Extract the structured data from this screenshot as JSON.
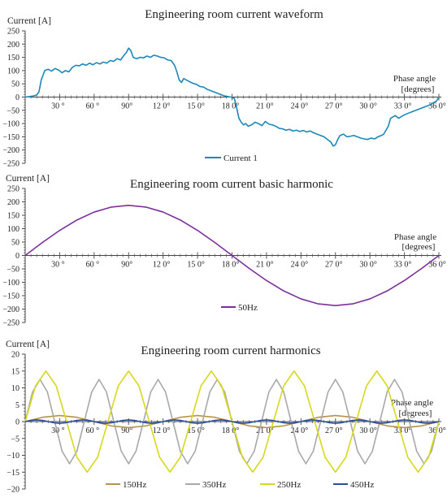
{
  "panels": [
    {
      "title": "Engineering room current waveform",
      "ylabel": "Current [A]",
      "xlabel_line1": "Phase angle",
      "xlabel_line2": "[degrees]",
      "xtick_labels": [
        "30 °",
        "60 °",
        "90°",
        "12 0°",
        "15 0°",
        "18 0°",
        "21 0°",
        "24 0°",
        "27 0°",
        "30 0°",
        "33 0°",
        "36 0°"
      ],
      "ytick_labels": [
        "250",
        "200",
        "150",
        "100",
        "50",
        "0",
        "−50",
        "−100",
        "−150",
        "−200",
        "−250"
      ],
      "legend": [
        "Current 1"
      ]
    },
    {
      "title": "Engineering room current basic harmonic",
      "ylabel": "Current [A]",
      "xlabel_line1": "Phase angle",
      "xlabel_line2": "[degrees]",
      "xtick_labels": [
        "30 °",
        "60 °",
        "90°",
        "12 0°",
        "15 0°",
        "18 0°",
        "21 0°",
        "24 0°",
        "27 0°",
        "30 0°",
        "33 0°",
        "36 0°"
      ],
      "ytick_labels": [
        "250",
        "200",
        "150",
        "100",
        "50",
        "0",
        "−50",
        "−100",
        "−150",
        "−200",
        "−250"
      ],
      "legend": [
        "50Hz"
      ]
    },
    {
      "title": "Engineering room current harmonics",
      "ylabel": "Current [A]",
      "xlabel_line1": "Phase angle",
      "xlabel_line2": "[degrees]",
      "xtick_labels": [
        "30 °",
        "60 °",
        "90°",
        "12 0°",
        "15 0°",
        "18 0°",
        "21 0°",
        "24 0°",
        "27 0°",
        "30 0°",
        "33 0°",
        "36 0°"
      ],
      "ytick_labels": [
        "20",
        "15",
        "10",
        "5",
        "0",
        "−5",
        "−10",
        "−15",
        "−20"
      ],
      "legend": [
        "150Hz",
        "350Hz",
        "250Hz",
        "450Hz"
      ]
    }
  ],
  "chart_data": [
    {
      "type": "line",
      "title": "Engineering room current waveform",
      "xlabel": "Phase angle [degrees]",
      "ylabel": "Current [A]",
      "xlim": [
        0,
        360
      ],
      "ylim": [
        -250,
        250
      ],
      "grid": false,
      "legend_position": "bottom",
      "series": [
        {
          "name": "Current 1",
          "color": "#1a88b8",
          "x": [
            0,
            5,
            10,
            12,
            14,
            17,
            20,
            23,
            26,
            29,
            32,
            35,
            38,
            41,
            44,
            47,
            50,
            53,
            56,
            59,
            62,
            65,
            68,
            71,
            74,
            77,
            80,
            83,
            86,
            88,
            90,
            92,
            94,
            97,
            100,
            103,
            106,
            109,
            112,
            115,
            118,
            121,
            124,
            127,
            130,
            132,
            134,
            136,
            138,
            140,
            143,
            146,
            149,
            152,
            155,
            158,
            161,
            164,
            167,
            170,
            173,
            176,
            179,
            182,
            184,
            186,
            188,
            190,
            192,
            194,
            197,
            200,
            203,
            206,
            209,
            212,
            215,
            218,
            221,
            224,
            227,
            230,
            233,
            236,
            239,
            242,
            245,
            248,
            251,
            254,
            257,
            260,
            263,
            266,
            268,
            270,
            272,
            274,
            277,
            280,
            283,
            286,
            289,
            292,
            295,
            298,
            301,
            304,
            307,
            310,
            312,
            314,
            316,
            318,
            320,
            322,
            325,
            328,
            331,
            334,
            337,
            340,
            343,
            346,
            349,
            352,
            355,
            358,
            360
          ],
          "y": [
            0,
            2,
            8,
            20,
            65,
            100,
            105,
            98,
            108,
            102,
            92,
            100,
            95,
            112,
            120,
            118,
            125,
            120,
            128,
            122,
            130,
            125,
            132,
            128,
            138,
            135,
            145,
            140,
            158,
            168,
            185,
            175,
            150,
            145,
            150,
            148,
            155,
            150,
            158,
            155,
            150,
            148,
            140,
            138,
            120,
            95,
            65,
            55,
            70,
            65,
            58,
            52,
            48,
            40,
            38,
            30,
            25,
            20,
            15,
            10,
            5,
            2,
            0,
            -5,
            -40,
            -80,
            -95,
            -105,
            -100,
            -110,
            -105,
            -95,
            -100,
            -108,
            -92,
            -102,
            -105,
            -110,
            -118,
            -120,
            -125,
            -122,
            -128,
            -125,
            -130,
            -126,
            -132,
            -128,
            -135,
            -140,
            -145,
            -150,
            -160,
            -170,
            -185,
            -180,
            -160,
            -145,
            -140,
            -150,
            -148,
            -145,
            -150,
            -155,
            -158,
            -160,
            -155,
            -158,
            -150,
            -145,
            -140,
            -125,
            -110,
            -80,
            -75,
            -70,
            -80,
            -72,
            -65,
            -60,
            -55,
            -50,
            -45,
            -40,
            -35,
            -30,
            -22,
            -15,
            0
          ]
        }
      ]
    },
    {
      "type": "line",
      "title": "Engineering room current basic harmonic",
      "xlabel": "Phase angle [degrees]",
      "ylabel": "Current [A]",
      "xlim": [
        0,
        360
      ],
      "ylim": [
        -250,
        250
      ],
      "grid": false,
      "legend_position": "bottom",
      "series": [
        {
          "name": "50Hz",
          "color": "#7b2f9c",
          "x": [
            0,
            15,
            30,
            45,
            60,
            75,
            90,
            105,
            120,
            135,
            150,
            165,
            180,
            195,
            210,
            225,
            240,
            255,
            270,
            285,
            300,
            315,
            330,
            345,
            360
          ],
          "y": [
            0,
            48.4,
            93.5,
            132.2,
            161.9,
            180.6,
            187,
            180.6,
            161.9,
            132.2,
            93.5,
            48.4,
            0,
            -48.4,
            -93.5,
            -132.2,
            -161.9,
            -180.6,
            -187,
            -180.6,
            -161.9,
            -132.2,
            -93.5,
            -48.4,
            0
          ]
        }
      ]
    },
    {
      "type": "line",
      "title": "Engineering room current harmonics",
      "xlabel": "Phase angle [degrees]",
      "ylabel": "Current [A]",
      "xlim": [
        0,
        360
      ],
      "ylim": [
        -20,
        20
      ],
      "grid": false,
      "legend_position": "bottom",
      "series": [
        {
          "name": "150Hz",
          "color": "#b5944a",
          "x": [
            0,
            15,
            30,
            45,
            60,
            75,
            90,
            105,
            120,
            135,
            150,
            165,
            180,
            195,
            210,
            225,
            240,
            255,
            270,
            285,
            300,
            315,
            330,
            345,
            360
          ],
          "y": [
            0,
            1.27,
            1.8,
            1.27,
            0,
            -1.27,
            -1.8,
            -1.27,
            0,
            1.27,
            1.8,
            1.27,
            0,
            -1.27,
            -1.8,
            -1.27,
            0,
            1.27,
            1.8,
            1.27,
            0,
            -1.27,
            -1.8,
            -1.27,
            0
          ]
        },
        {
          "name": "350Hz",
          "color": "#a8a8a8",
          "x": [
            0,
            6.4,
            12.9,
            19.3,
            25.7,
            32.1,
            38.6,
            45,
            51.4,
            57.9,
            64.3,
            70.7,
            77.1,
            83.6,
            90,
            96.4,
            102.9,
            109.3,
            115.7,
            122.1,
            128.6,
            135,
            141.4,
            147.9,
            154.3,
            160.7,
            167.1,
            173.6,
            180,
            186.4,
            192.9,
            199.3,
            205.7,
            212.1,
            218.6,
            225,
            231.4,
            237.9,
            244.3,
            250.7,
            257.1,
            263.6,
            270,
            276.4,
            282.9,
            289.3,
            295.7,
            302.1,
            308.6,
            315,
            321.4,
            327.9,
            334.3,
            340.7,
            347.1,
            353.6,
            360
          ],
          "y": [
            0,
            8.8,
            12.5,
            8.8,
            0,
            -8.8,
            -12.5,
            -8.8,
            0,
            8.8,
            12.5,
            8.8,
            0,
            -8.8,
            -12.5,
            -8.8,
            0,
            8.8,
            12.5,
            8.8,
            0,
            -8.8,
            -12.5,
            -8.8,
            0,
            8.8,
            12.5,
            8.8,
            0,
            -8.8,
            -12.5,
            -8.8,
            0,
            8.8,
            12.5,
            8.8,
            0,
            -8.8,
            -12.5,
            -8.8,
            0,
            8.8,
            12.5,
            8.8,
            0,
            -8.8,
            -12.5,
            -8.8,
            0,
            8.8,
            12.5,
            8.8,
            0,
            -8.8,
            -12.5,
            -8.8,
            0
          ]
        },
        {
          "name": "250Hz",
          "color": "#d8d81e",
          "x": [
            0,
            9,
            18,
            27,
            36,
            45,
            54,
            63,
            72,
            81,
            90,
            99,
            108,
            117,
            126,
            135,
            144,
            153,
            162,
            171,
            180,
            189,
            198,
            207,
            216,
            225,
            234,
            243,
            252,
            261,
            270,
            279,
            288,
            297,
            306,
            315,
            324,
            333,
            342,
            351,
            360
          ],
          "y": [
            0,
            10.6,
            15,
            10.6,
            0,
            -10.6,
            -15,
            -10.6,
            0,
            10.6,
            15,
            10.6,
            0,
            -10.6,
            -15,
            -10.6,
            0,
            10.6,
            15,
            10.6,
            0,
            -10.6,
            -15,
            -10.6,
            0,
            10.6,
            15,
            10.6,
            0,
            -10.6,
            -15,
            -10.6,
            0,
            10.6,
            15,
            10.6,
            0,
            -10.6,
            -15,
            -10.6,
            0
          ]
        },
        {
          "name": "450Hz",
          "color": "#2a4f9a",
          "x": [
            0,
            5,
            10,
            15,
            20,
            25,
            30,
            35,
            40,
            45,
            50,
            55,
            60,
            65,
            70,
            75,
            80,
            85,
            90,
            95,
            100,
            105,
            110,
            115,
            120,
            125,
            130,
            135,
            140,
            145,
            150,
            155,
            160,
            165,
            170,
            175,
            180,
            185,
            190,
            195,
            200,
            205,
            210,
            215,
            220,
            225,
            230,
            235,
            240,
            245,
            250,
            255,
            260,
            265,
            270,
            275,
            280,
            285,
            290,
            295,
            300,
            305,
            310,
            315,
            320,
            325,
            330,
            335,
            340,
            345,
            350,
            355,
            360
          ],
          "y": [
            0,
            0.35,
            0.5,
            0.35,
            0,
            -0.35,
            -0.5,
            -0.35,
            0,
            0.35,
            0.5,
            0.35,
            0,
            -0.35,
            -0.5,
            -0.35,
            0,
            0.35,
            0.5,
            0.35,
            0,
            -0.35,
            -0.5,
            -0.35,
            0,
            0.35,
            0.5,
            0.35,
            0,
            -0.35,
            -0.5,
            -0.35,
            0,
            0.35,
            0.5,
            0.35,
            0,
            -0.35,
            -0.5,
            -0.35,
            0,
            0.35,
            0.5,
            0.35,
            0,
            -0.35,
            -0.5,
            -0.35,
            0,
            0.35,
            0.5,
            0.35,
            0,
            -0.35,
            -0.5,
            -0.35,
            0,
            0.35,
            0.5,
            0.35,
            0,
            -0.35,
            -0.5,
            -0.35,
            0,
            0.35,
            0.5,
            0.35,
            0,
            -0.35,
            -0.5,
            -0.35,
            0
          ]
        }
      ]
    }
  ]
}
